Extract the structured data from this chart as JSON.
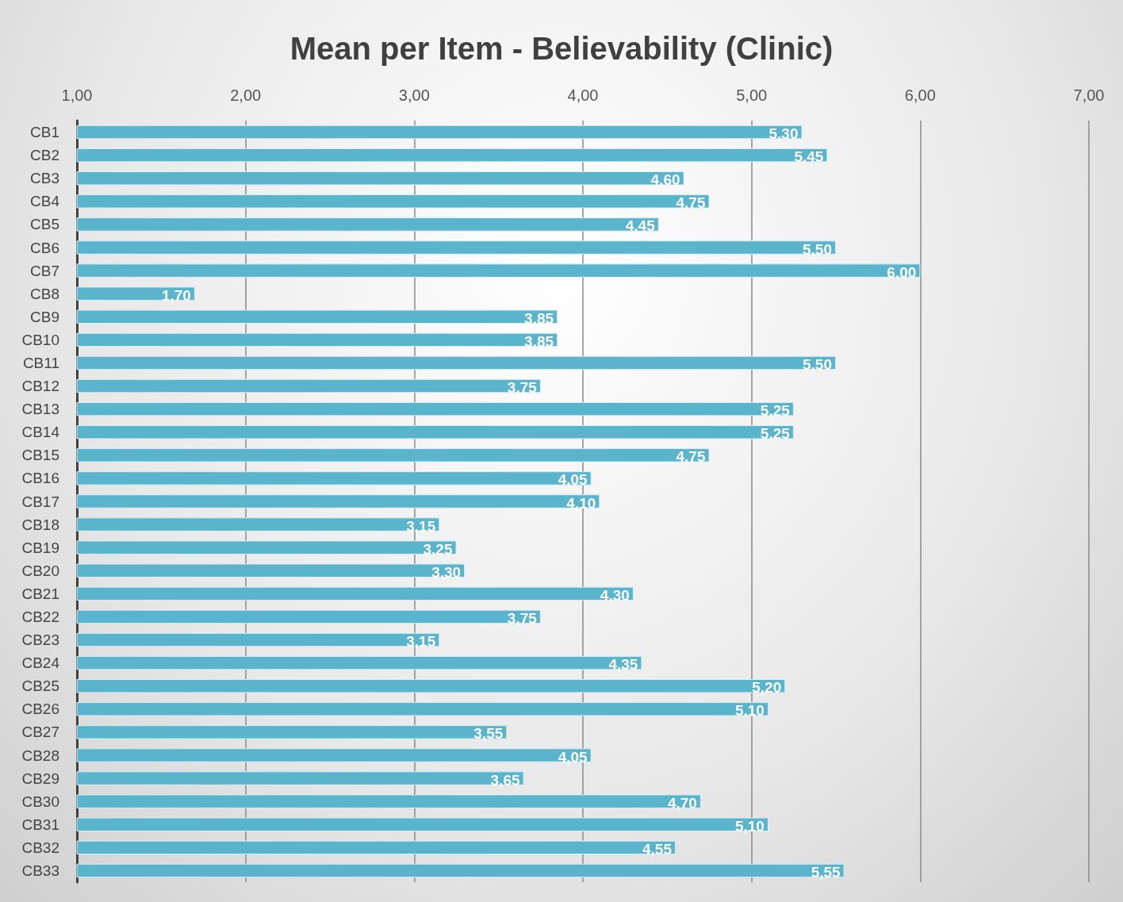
{
  "chart_data": {
    "type": "bar",
    "orientation": "horizontal",
    "title": "Mean per Item - Believability (Clinic)",
    "categories": [
      "CB1",
      "CB2",
      "CB3",
      "CB4",
      "CB5",
      "CB6",
      "CB7",
      "CB8",
      "CB9",
      "CB10",
      "CB11",
      "CB12",
      "CB13",
      "CB14",
      "CB15",
      "CB16",
      "CB17",
      "CB18",
      "CB19",
      "CB20",
      "CB21",
      "CB22",
      "CB23",
      "CB24",
      "CB25",
      "CB26",
      "CB27",
      "CB28",
      "CB29",
      "CB30",
      "CB31",
      "CB32",
      "CB33"
    ],
    "values": [
      5.3,
      5.45,
      4.6,
      4.75,
      4.45,
      5.5,
      6.0,
      1.7,
      3.85,
      3.85,
      5.5,
      3.75,
      5.25,
      5.25,
      4.75,
      4.05,
      4.1,
      3.15,
      3.25,
      3.3,
      4.3,
      3.75,
      3.15,
      4.35,
      5.2,
      5.1,
      3.55,
      4.05,
      3.65,
      4.7,
      5.1,
      4.55,
      5.55
    ],
    "value_labels": [
      "5,30",
      "5,45",
      "4,60",
      "4,75",
      "4,45",
      "5,50",
      "6,00",
      "1,70",
      "3,85",
      "3,85",
      "5,50",
      "3,75",
      "5,25",
      "5,25",
      "4,75",
      "4,05",
      "4,10",
      "3,15",
      "3,25",
      "3,30",
      "4,30",
      "3,75",
      "3,15",
      "4,35",
      "5,20",
      "5,10",
      "3,55",
      "4,05",
      "3,65",
      "4,70",
      "5,10",
      "4,55",
      "5,55"
    ],
    "color": "#5ab4cc",
    "xlim": [
      1,
      7
    ],
    "xticks": [
      {
        "value": 1,
        "label": "1,00"
      },
      {
        "value": 2,
        "label": "2,00"
      },
      {
        "value": 3,
        "label": "3,00"
      },
      {
        "value": 4,
        "label": "4,00"
      },
      {
        "value": 5,
        "label": "5,00"
      },
      {
        "value": 6,
        "label": "6,00"
      },
      {
        "value": 7,
        "label": "7,00"
      }
    ],
    "grid": "x"
  }
}
